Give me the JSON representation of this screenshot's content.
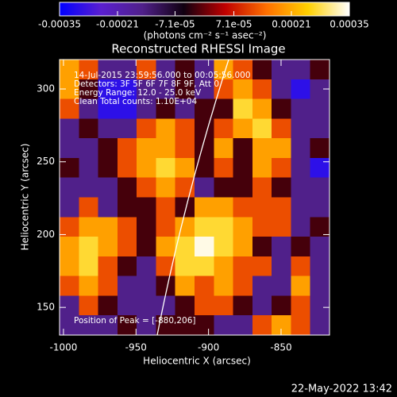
{
  "chart_data": {
    "type": "heatmap",
    "title": "Reconstructed RHESSI Image",
    "xlabel": "Heliocentric X (arcsec)",
    "ylabel": "Heliocentric Y (arcsec)",
    "xlim": [
      -1002.7,
      -816.6
    ],
    "ylim": [
      131,
      320.2
    ],
    "xticks": [
      -1000,
      -950,
      -900,
      -850
    ],
    "yticks": [
      150,
      200,
      250,
      300
    ],
    "colorbar": {
      "label": "(photons cm⁻² s⁻¹ asec⁻²)",
      "clim": [
        -0.00035,
        0.00035
      ],
      "ticks": [
        -0.00035,
        -0.00021,
        {
          "value": -7.1e-05,
          "label": "-7.1e-05"
        },
        {
          "value": 7.1e-05,
          "label": "7.1e-05"
        },
        0.00021,
        0.00035
      ],
      "colorscale": [
        "#0000ff",
        "#5a1fd0",
        "#50208a",
        "#100010",
        "#c00000",
        "#ff7000",
        "#ffd000",
        "#ffffff"
      ]
    },
    "annotations": [
      "14-Jul-2015 23:59:56.000 to 00:05:56.000",
      "Detectors: 3F 5F 6F 7F 8F 9F, Att 0",
      "Energy Range: 12.0 - 25.0 keV",
      "Clean     Total counts: 1.10E+04"
    ],
    "peak_label": "Position of Peak = [-880,206]",
    "timestamp": "22-May-2022 13:42",
    "z": [
      [
        0.0002,
        0.00012,
        -0.00015,
        -0.00015,
        0.00012,
        -0.00015,
        -2e-05,
        -0.00015,
        0.0002,
        0.00012,
        -2e-05,
        -0.00015,
        -0.00015,
        -2e-05
      ],
      [
        0.0002,
        -2e-05,
        -0.0003,
        -0.0003,
        -0.00015,
        -0.00015,
        -2e-05,
        -0.00015,
        0.00012,
        0.0002,
        0.00012,
        -0.00015,
        -0.0003,
        -0.00015
      ],
      [
        0.00012,
        -0.00015,
        -0.0003,
        -0.0003,
        -0.00015,
        -2e-05,
        -0.00015,
        -2e-05,
        -2e-05,
        0.00027,
        0.0002,
        -2e-05,
        -0.00015,
        -0.00015
      ],
      [
        -0.00015,
        -2e-05,
        -0.00015,
        -0.00015,
        0.00012,
        0.0002,
        0.00012,
        -2e-05,
        0.00012,
        0.0002,
        0.00027,
        0.00012,
        -0.00015,
        -0.00015
      ],
      [
        -0.00015,
        -0.00015,
        -2e-05,
        0.00012,
        0.0002,
        0.0002,
        0.00012,
        -2e-05,
        0.0002,
        -2e-05,
        0.0002,
        0.0002,
        -0.00015,
        -2e-05
      ],
      [
        -2e-05,
        -0.00015,
        -2e-05,
        0.00012,
        0.0002,
        0.00027,
        0.0002,
        -2e-05,
        0.00012,
        -2e-05,
        0.0002,
        0.00012,
        -0.00015,
        -0.0003
      ],
      [
        -0.00015,
        -0.00015,
        -0.00015,
        -2e-05,
        0.00012,
        0.0002,
        0.00012,
        -0.00015,
        -2e-05,
        -2e-05,
        0.00012,
        -2e-05,
        -0.00015,
        -0.00015
      ],
      [
        -0.00015,
        0.00012,
        -0.00015,
        -2e-05,
        -2e-05,
        0.00012,
        -2e-05,
        0.0002,
        0.0002,
        0.00012,
        0.00012,
        0.00012,
        -0.00015,
        -0.00015
      ],
      [
        0.00012,
        0.0002,
        0.0002,
        0.00012,
        -2e-05,
        0.00012,
        0.0002,
        0.00027,
        0.00027,
        0.0002,
        0.00012,
        0.00012,
        -0.00015,
        -2e-05
      ],
      [
        0.0002,
        0.00027,
        0.0002,
        0.00012,
        -2e-05,
        0.0002,
        0.00027,
        0.00034,
        0.00027,
        0.0002,
        -2e-05,
        -0.00015,
        -2e-05,
        -0.00015
      ],
      [
        0.0002,
        0.00027,
        0.00012,
        -2e-05,
        -0.00015,
        0.00012,
        0.00027,
        0.00027,
        0.0002,
        0.00012,
        0.00012,
        -0.00015,
        0.00012,
        -0.00015
      ],
      [
        0.00012,
        0.0002,
        0.00012,
        -0.00015,
        -0.00015,
        -2e-05,
        0.0002,
        0.00012,
        0.0002,
        0.00012,
        -0.00015,
        -0.00015,
        0.0002,
        -0.00015
      ],
      [
        -0.00015,
        0.00012,
        -2e-05,
        -0.00015,
        -0.00015,
        -0.00015,
        -2e-05,
        0.00012,
        0.00012,
        -2e-05,
        -0.00015,
        -2e-05,
        0.00012,
        -0.00015
      ],
      [
        -0.00015,
        -0.00015,
        -0.00015,
        -2e-05,
        -0.00015,
        -2e-05,
        -2e-05,
        -2e-05,
        -0.00015,
        -0.00015,
        0.00012,
        0.0002,
        0.00012,
        -0.00015
      ]
    ]
  }
}
